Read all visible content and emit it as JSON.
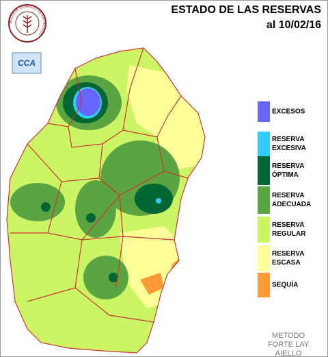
{
  "header": {
    "title": "ESTADO DE LAS RESERVAS",
    "date": "al 10/02/16"
  },
  "logo": {
    "ring_text": "BOLSA DE CEREALES DE ENTRE RIOS",
    "badge": "CCA"
  },
  "legend": [
    {
      "lines": [
        "EXCESOS"
      ],
      "color": "#6666ff"
    },
    {
      "lines": [
        "RESERVA",
        "EXCESIVA"
      ],
      "color": "#33ccff"
    },
    {
      "lines": [
        "RESERVA",
        "ÓPTIMA"
      ],
      "color": "#006633"
    },
    {
      "lines": [
        "RESERVA",
        "ADECUADA"
      ],
      "color": "#5aa542"
    },
    {
      "lines": [
        "RESERVA",
        "REGULAR"
      ],
      "color": "#ccf566"
    },
    {
      "lines": [
        "RESERVA",
        "ESCASA"
      ],
      "color": "#ffff99"
    },
    {
      "lines": [
        "SEQUÍA"
      ],
      "color": "#ff9933"
    }
  ],
  "footer": [
    "METODO",
    "FORTE LAY",
    "AIELLO"
  ]
}
